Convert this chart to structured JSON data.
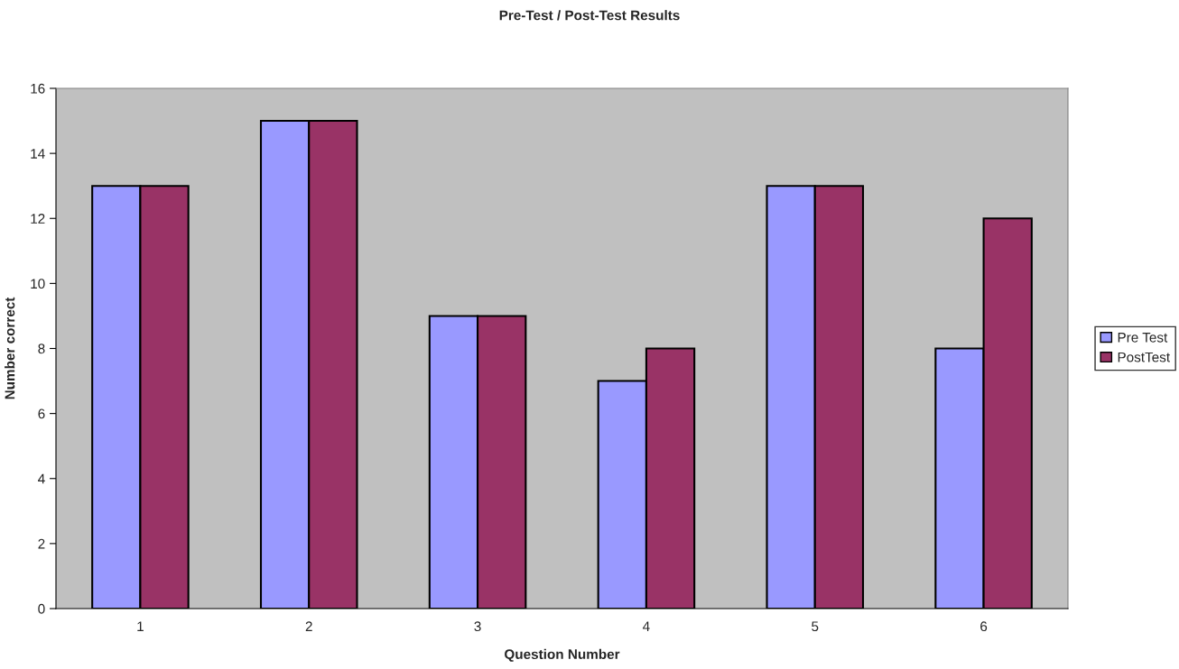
{
  "chart_data": {
    "type": "bar",
    "title": "Pre-Test / Post-Test Results",
    "xlabel": "Question Number",
    "ylabel": "Number correct",
    "categories": [
      "1",
      "2",
      "3",
      "4",
      "5",
      "6"
    ],
    "series": [
      {
        "name": "Pre Test",
        "color": "#9999ff",
        "values": [
          13,
          15,
          9,
          7,
          13,
          8
        ]
      },
      {
        "name": "PostTest",
        "color": "#993366",
        "values": [
          13,
          15,
          9,
          8,
          13,
          12
        ]
      }
    ],
    "ylim": [
      0,
      16
    ],
    "yticks": [
      0,
      2,
      4,
      6,
      8,
      10,
      12,
      14,
      16
    ],
    "grid": false,
    "legend": "right"
  }
}
